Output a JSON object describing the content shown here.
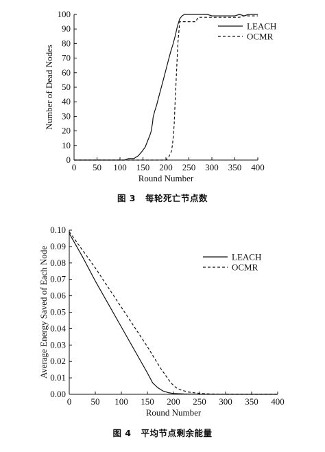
{
  "chart_data": [
    {
      "type": "line",
      "caption": {
        "number": "图 3",
        "title": "每轮死亡节点数"
      },
      "xlabel": "Round Number",
      "ylabel": "Number of Dead Nodes",
      "xlim": [
        0,
        400
      ],
      "ylim": [
        0,
        100
      ],
      "xticks": [
        0,
        50,
        100,
        150,
        200,
        250,
        300,
        350,
        400
      ],
      "yticks": [
        0,
        10,
        20,
        30,
        40,
        50,
        60,
        70,
        80,
        90,
        100
      ],
      "grid": false,
      "legend": "top-right",
      "series": [
        {
          "name": "LEACH",
          "style": "solid",
          "x": [
            0,
            110,
            118,
            122,
            130,
            140,
            148,
            155,
            160,
            165,
            168,
            170,
            171,
            172,
            175,
            180,
            185,
            190,
            195,
            200,
            205,
            210,
            215,
            220,
            225,
            230,
            235,
            240,
            250,
            260,
            270,
            280,
            290,
            300,
            310,
            320,
            330,
            340,
            350,
            360,
            370,
            380,
            400
          ],
          "y": [
            0,
            0,
            1,
            1,
            1,
            3,
            6,
            9,
            13,
            17,
            20,
            24,
            26,
            29,
            33,
            38,
            44,
            50,
            56,
            62,
            68,
            74,
            79,
            85,
            92,
            97,
            99,
            100,
            100,
            100,
            100,
            100,
            100,
            99,
            99,
            99,
            99,
            99,
            99,
            100,
            99,
            100,
            100
          ]
        },
        {
          "name": "OCMR",
          "style": "dashed",
          "x": [
            0,
            190,
            195,
            200,
            203,
            206,
            209,
            212,
            214,
            216,
            218,
            220,
            223,
            226,
            230,
            250,
            265,
            270,
            300,
            320,
            340,
            360,
            370,
            400
          ],
          "y": [
            0,
            0,
            0,
            0,
            1,
            2,
            4,
            6,
            10,
            16,
            25,
            40,
            60,
            80,
            95,
            95,
            95,
            98,
            98,
            98,
            98,
            98,
            99,
            99
          ]
        }
      ]
    },
    {
      "type": "line",
      "caption": {
        "number": "图 4",
        "title": "平均节点剩余能量"
      },
      "xlabel": "Round Number",
      "ylabel": "Average Energy Saved of Each Node",
      "xlim": [
        0,
        400
      ],
      "ylim": [
        0,
        0.1
      ],
      "xticks": [
        0,
        50,
        100,
        150,
        200,
        250,
        300,
        350,
        400
      ],
      "yticks": [
        "0.00",
        "0.01",
        "0.02",
        "0.03",
        "0.04",
        "0.05",
        "0.06",
        "0.07",
        "0.08",
        "0.09",
        "0.10"
      ],
      "grid": false,
      "legend": "top-right",
      "series": [
        {
          "name": "LEACH",
          "style": "solid",
          "x": [
            0,
            25,
            50,
            75,
            100,
            125,
            150,
            160,
            170,
            180,
            190,
            200,
            220,
            250,
            300,
            400
          ],
          "y": [
            0.098,
            0.084,
            0.069,
            0.055,
            0.041,
            0.027,
            0.013,
            0.007,
            0.004,
            0.002,
            0.001,
            0.0005,
            0.0002,
            0,
            0,
            0
          ]
        },
        {
          "name": "OCMR",
          "style": "dashed",
          "x": [
            0,
            25,
            50,
            75,
            100,
            125,
            150,
            175,
            195,
            205,
            215,
            230,
            250,
            270,
            300,
            320,
            400
          ],
          "y": [
            0.099,
            0.088,
            0.077,
            0.065,
            0.053,
            0.041,
            0.029,
            0.016,
            0.007,
            0.004,
            0.0025,
            0.0013,
            0.0006,
            0.0002,
            0,
            0,
            0
          ]
        }
      ]
    }
  ]
}
